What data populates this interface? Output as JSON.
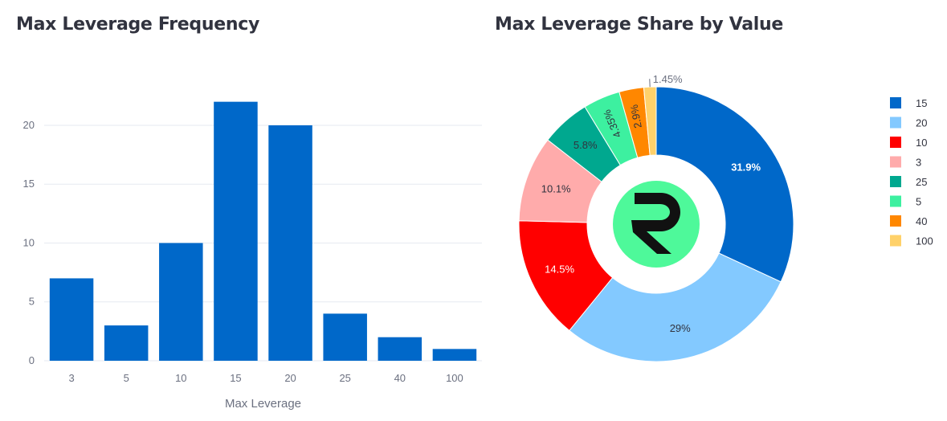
{
  "chart_data": [
    {
      "type": "bar",
      "title": "Max Leverage Frequency",
      "xlabel": "Max Leverage",
      "ylabel": "",
      "categories": [
        "3",
        "5",
        "10",
        "15",
        "20",
        "25",
        "40",
        "100"
      ],
      "values": [
        7,
        3,
        10,
        22,
        20,
        4,
        2,
        1
      ],
      "ylim": [
        0,
        23
      ],
      "yticks": [
        0,
        5,
        10,
        15,
        20
      ],
      "color": "#0068c9",
      "grid": true
    },
    {
      "type": "pie",
      "title": "Max Leverage Share by Value",
      "hole": true,
      "labels": [
        "15",
        "20",
        "10",
        "3",
        "25",
        "5",
        "40",
        "100"
      ],
      "values": [
        31.9,
        29.0,
        14.5,
        10.1,
        5.8,
        4.35,
        2.9,
        1.45
      ],
      "percent_labels": [
        "31.9%",
        "29%",
        "14.5%",
        "10.1%",
        "5.8%",
        "4.35%",
        "2.9%",
        "1.45%"
      ],
      "colors": [
        "#0068c9",
        "#83c9ff",
        "#ff0000",
        "#ffabab",
        "#00a88f",
        "#3df0a0",
        "#ff8700",
        "#ffd16a"
      ],
      "label_colors": [
        "#ffffff",
        "#31333f",
        "#ffffff",
        "#31333f",
        "#31333f",
        "#31333f",
        "#31333f",
        "#6b7080"
      ],
      "legend_position": "right"
    }
  ],
  "logo": {
    "letter": "R",
    "bg_color": "#4ef99a"
  }
}
